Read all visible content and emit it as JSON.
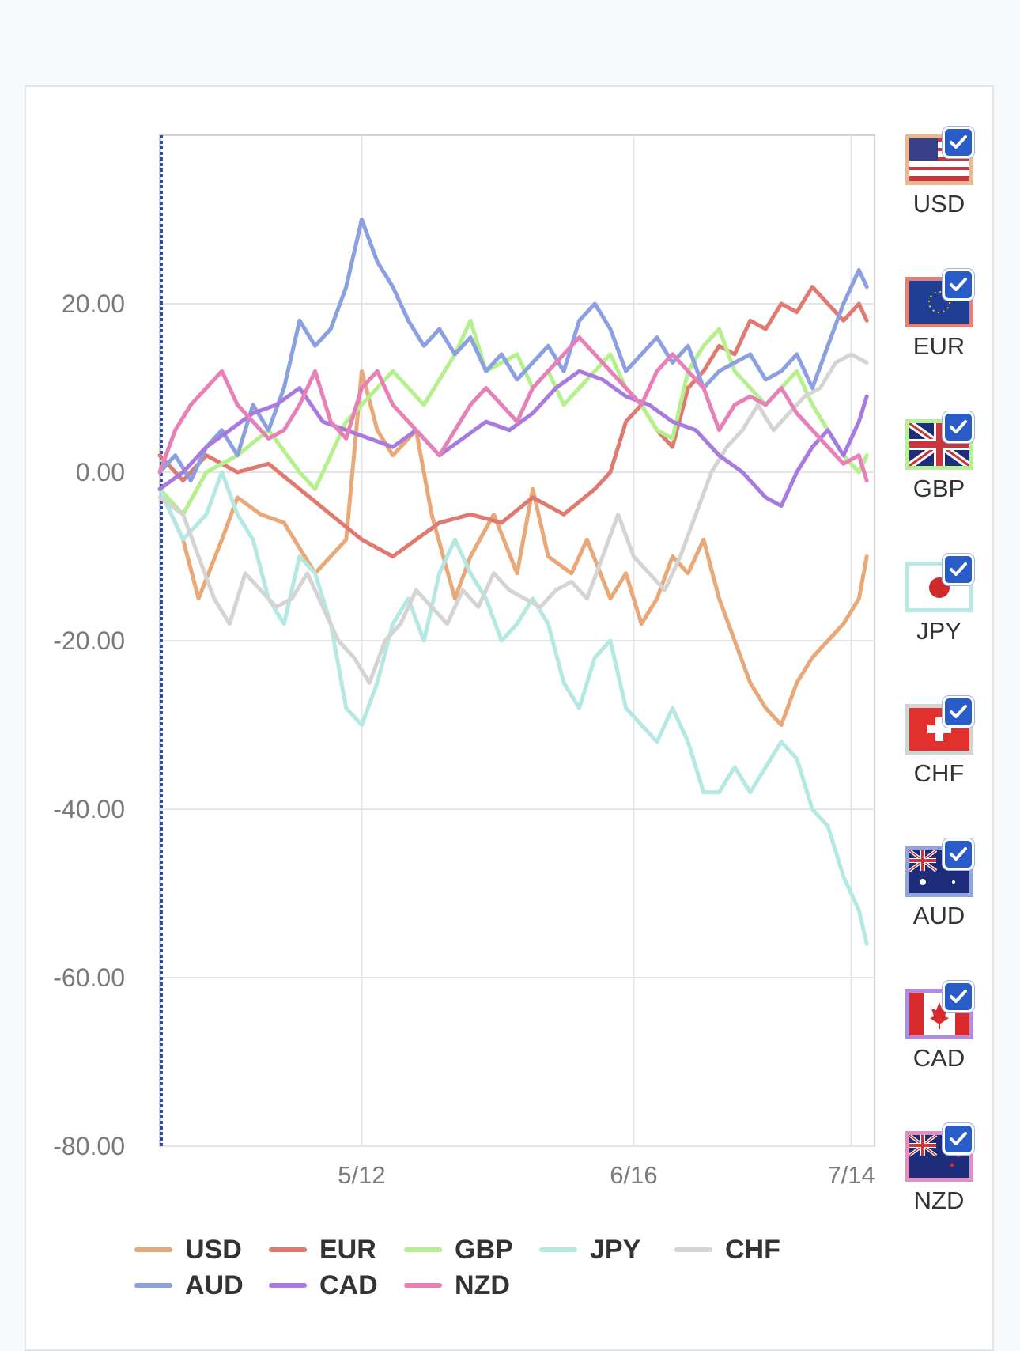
{
  "chart_data": {
    "type": "line",
    "title": "",
    "xlabel": "",
    "ylabel": "",
    "ylim": [
      -80,
      40
    ],
    "y_ticks": [
      "20.00",
      "0.00",
      "-20.00",
      "-40.00",
      "-60.00",
      "-80.00"
    ],
    "y_tick_values": [
      20,
      0,
      -20,
      -40,
      -60,
      -80
    ],
    "x_tick_labels": [
      "5/12",
      "6/16",
      "7/14"
    ],
    "x_tick_values": [
      26,
      61,
      89
    ],
    "xlim": [
      0,
      92
    ],
    "grid": true,
    "legend_position": "bottom",
    "series": [
      {
        "name": "USD",
        "color": "#e8a878",
        "x": [
          0,
          3,
          5,
          8,
          10,
          13,
          16,
          20,
          24,
          26,
          28,
          30,
          33,
          35,
          38,
          40,
          43,
          46,
          48,
          50,
          53,
          55,
          58,
          60,
          62,
          64,
          66,
          68,
          70,
          72,
          74,
          76,
          78,
          80,
          82,
          84,
          86,
          88,
          90,
          91
        ],
        "values": [
          -2,
          -8,
          -15,
          -8,
          -3,
          -5,
          -6,
          -12,
          -8,
          12,
          5,
          2,
          5,
          -5,
          -15,
          -10,
          -5,
          -12,
          -2,
          -10,
          -12,
          -8,
          -15,
          -12,
          -18,
          -15,
          -10,
          -12,
          -8,
          -15,
          -20,
          -25,
          -28,
          -30,
          -25,
          -22,
          -20,
          -18,
          -15,
          -10
        ]
      },
      {
        "name": "EUR",
        "color": "#e07a70",
        "x": [
          0,
          3,
          6,
          10,
          14,
          18,
          22,
          26,
          30,
          33,
          36,
          40,
          44,
          48,
          52,
          56,
          58,
          60,
          62,
          64,
          66,
          68,
          70,
          72,
          74,
          76,
          78,
          80,
          82,
          84,
          86,
          88,
          90,
          91
        ],
        "values": [
          2,
          -1,
          2,
          0,
          1,
          -2,
          -5,
          -8,
          -10,
          -8,
          -6,
          -5,
          -6,
          -3,
          -5,
          -2,
          0,
          6,
          8,
          5,
          3,
          10,
          12,
          15,
          14,
          18,
          17,
          20,
          19,
          22,
          20,
          18,
          20,
          18
        ]
      },
      {
        "name": "GBP",
        "color": "#b4f08c",
        "x": [
          0,
          3,
          6,
          10,
          14,
          18,
          20,
          24,
          28,
          30,
          34,
          38,
          40,
          42,
          46,
          48,
          50,
          52,
          54,
          56,
          58,
          60,
          62,
          64,
          66,
          68,
          70,
          72,
          74,
          76,
          78,
          80,
          82,
          84,
          86,
          88,
          90,
          91
        ],
        "values": [
          -2,
          -5,
          0,
          2,
          5,
          0,
          -2,
          6,
          10,
          12,
          8,
          14,
          18,
          12,
          14,
          10,
          12,
          8,
          10,
          12,
          14,
          10,
          8,
          5,
          4,
          12,
          15,
          17,
          12,
          10,
          8,
          10,
          12,
          8,
          5,
          2,
          0,
          2
        ]
      },
      {
        "name": "JPY",
        "color": "#b4e8e2",
        "x": [
          0,
          3,
          6,
          8,
          10,
          12,
          14,
          16,
          18,
          20,
          22,
          24,
          26,
          28,
          30,
          32,
          34,
          36,
          38,
          40,
          42,
          44,
          46,
          48,
          50,
          52,
          54,
          56,
          58,
          60,
          62,
          64,
          66,
          68,
          70,
          72,
          74,
          76,
          78,
          80,
          82,
          84,
          86,
          88,
          90,
          91
        ],
        "values": [
          -2,
          -8,
          -5,
          0,
          -5,
          -8,
          -15,
          -18,
          -10,
          -12,
          -18,
          -28,
          -30,
          -25,
          -18,
          -15,
          -20,
          -12,
          -8,
          -12,
          -15,
          -20,
          -18,
          -15,
          -18,
          -25,
          -28,
          -22,
          -20,
          -28,
          -30,
          -32,
          -28,
          -32,
          -38,
          -38,
          -35,
          -38,
          -35,
          -32,
          -34,
          -40,
          -42,
          -48,
          -52,
          -56
        ]
      },
      {
        "name": "CHF",
        "color": "#d4d4d4",
        "x": [
          0,
          3,
          5,
          7,
          9,
          11,
          13,
          15,
          17,
          19,
          21,
          23,
          25,
          27,
          29,
          31,
          33,
          35,
          37,
          39,
          41,
          43,
          45,
          47,
          49,
          51,
          53,
          55,
          57,
          59,
          61,
          63,
          65,
          67,
          69,
          71,
          73,
          75,
          77,
          79,
          81,
          83,
          85,
          87,
          89,
          91
        ],
        "values": [
          -3,
          -5,
          -10,
          -15,
          -18,
          -12,
          -14,
          -16,
          -15,
          -12,
          -16,
          -20,
          -22,
          -25,
          -20,
          -18,
          -14,
          -16,
          -18,
          -14,
          -16,
          -12,
          -14,
          -15,
          -16,
          -14,
          -13,
          -15,
          -10,
          -5,
          -10,
          -12,
          -14,
          -10,
          -5,
          0,
          3,
          5,
          8,
          5,
          7,
          9,
          10,
          13,
          14,
          13
        ]
      },
      {
        "name": "AUD",
        "color": "#8aa0e0",
        "x": [
          0,
          2,
          4,
          6,
          8,
          10,
          12,
          14,
          16,
          18,
          20,
          22,
          24,
          26,
          28,
          30,
          32,
          34,
          36,
          38,
          40,
          42,
          44,
          46,
          48,
          50,
          52,
          54,
          56,
          58,
          60,
          62,
          64,
          66,
          68,
          70,
          72,
          74,
          76,
          78,
          80,
          82,
          84,
          86,
          88,
          90,
          91
        ],
        "values": [
          0,
          2,
          -1,
          3,
          5,
          2,
          8,
          5,
          10,
          18,
          15,
          17,
          22,
          30,
          25,
          22,
          18,
          15,
          17,
          14,
          16,
          12,
          14,
          11,
          13,
          15,
          12,
          18,
          20,
          17,
          12,
          14,
          16,
          13,
          15,
          10,
          12,
          13,
          14,
          11,
          12,
          14,
          10,
          15,
          20,
          24,
          22
        ]
      },
      {
        "name": "CAD",
        "color": "#a87ae0",
        "x": [
          0,
          3,
          6,
          9,
          12,
          15,
          18,
          21,
          24,
          27,
          30,
          33,
          36,
          39,
          42,
          45,
          48,
          51,
          54,
          57,
          60,
          63,
          66,
          69,
          72,
          75,
          78,
          80,
          82,
          84,
          86,
          88,
          90,
          91
        ],
        "values": [
          -2,
          0,
          3,
          5,
          7,
          8,
          10,
          6,
          5,
          4,
          3,
          5,
          2,
          4,
          6,
          5,
          7,
          10,
          12,
          11,
          9,
          8,
          6,
          5,
          2,
          0,
          -3,
          -4,
          0,
          3,
          5,
          2,
          6,
          9
        ]
      },
      {
        "name": "NZD",
        "color": "#e880b8",
        "x": [
          0,
          2,
          4,
          6,
          8,
          10,
          12,
          14,
          16,
          18,
          20,
          22,
          24,
          26,
          28,
          30,
          32,
          34,
          36,
          38,
          40,
          42,
          44,
          46,
          48,
          50,
          52,
          54,
          56,
          58,
          60,
          62,
          64,
          66,
          68,
          70,
          72,
          74,
          76,
          78,
          80,
          82,
          84,
          86,
          88,
          90,
          91
        ],
        "values": [
          0,
          5,
          8,
          10,
          12,
          8,
          6,
          4,
          5,
          8,
          12,
          6,
          4,
          10,
          12,
          8,
          6,
          4,
          2,
          5,
          8,
          10,
          8,
          6,
          10,
          12,
          14,
          16,
          14,
          12,
          10,
          8,
          12,
          14,
          12,
          10,
          5,
          8,
          9,
          8,
          10,
          7,
          5,
          3,
          1,
          2,
          -1
        ]
      }
    ]
  },
  "currencies": [
    {
      "code": "USD",
      "border": "#e8b890",
      "checked": true
    },
    {
      "code": "EUR",
      "border": "#e08078",
      "checked": true
    },
    {
      "code": "GBP",
      "border": "#b8f098",
      "checked": true
    },
    {
      "code": "JPY",
      "border": "#bce8e2",
      "checked": true
    },
    {
      "code": "CHF",
      "border": "#d4d4d4",
      "checked": true
    },
    {
      "code": "AUD",
      "border": "#90a4e0",
      "checked": true
    },
    {
      "code": "CAD",
      "border": "#b08ce0",
      "checked": true
    },
    {
      "code": "NZD",
      "border": "#e090c0",
      "checked": true
    }
  ],
  "legend": [
    {
      "label": "USD",
      "color": "#e8a878"
    },
    {
      "label": "EUR",
      "color": "#e07a70"
    },
    {
      "label": "GBP",
      "color": "#b4f08c"
    },
    {
      "label": "JPY",
      "color": "#b4e8e2"
    },
    {
      "label": "CHF",
      "color": "#d4d4d4"
    },
    {
      "label": "AUD",
      "color": "#8aa0e0"
    },
    {
      "label": "CAD",
      "color": "#a87ae0"
    },
    {
      "label": "NZD",
      "color": "#e880b8"
    }
  ]
}
